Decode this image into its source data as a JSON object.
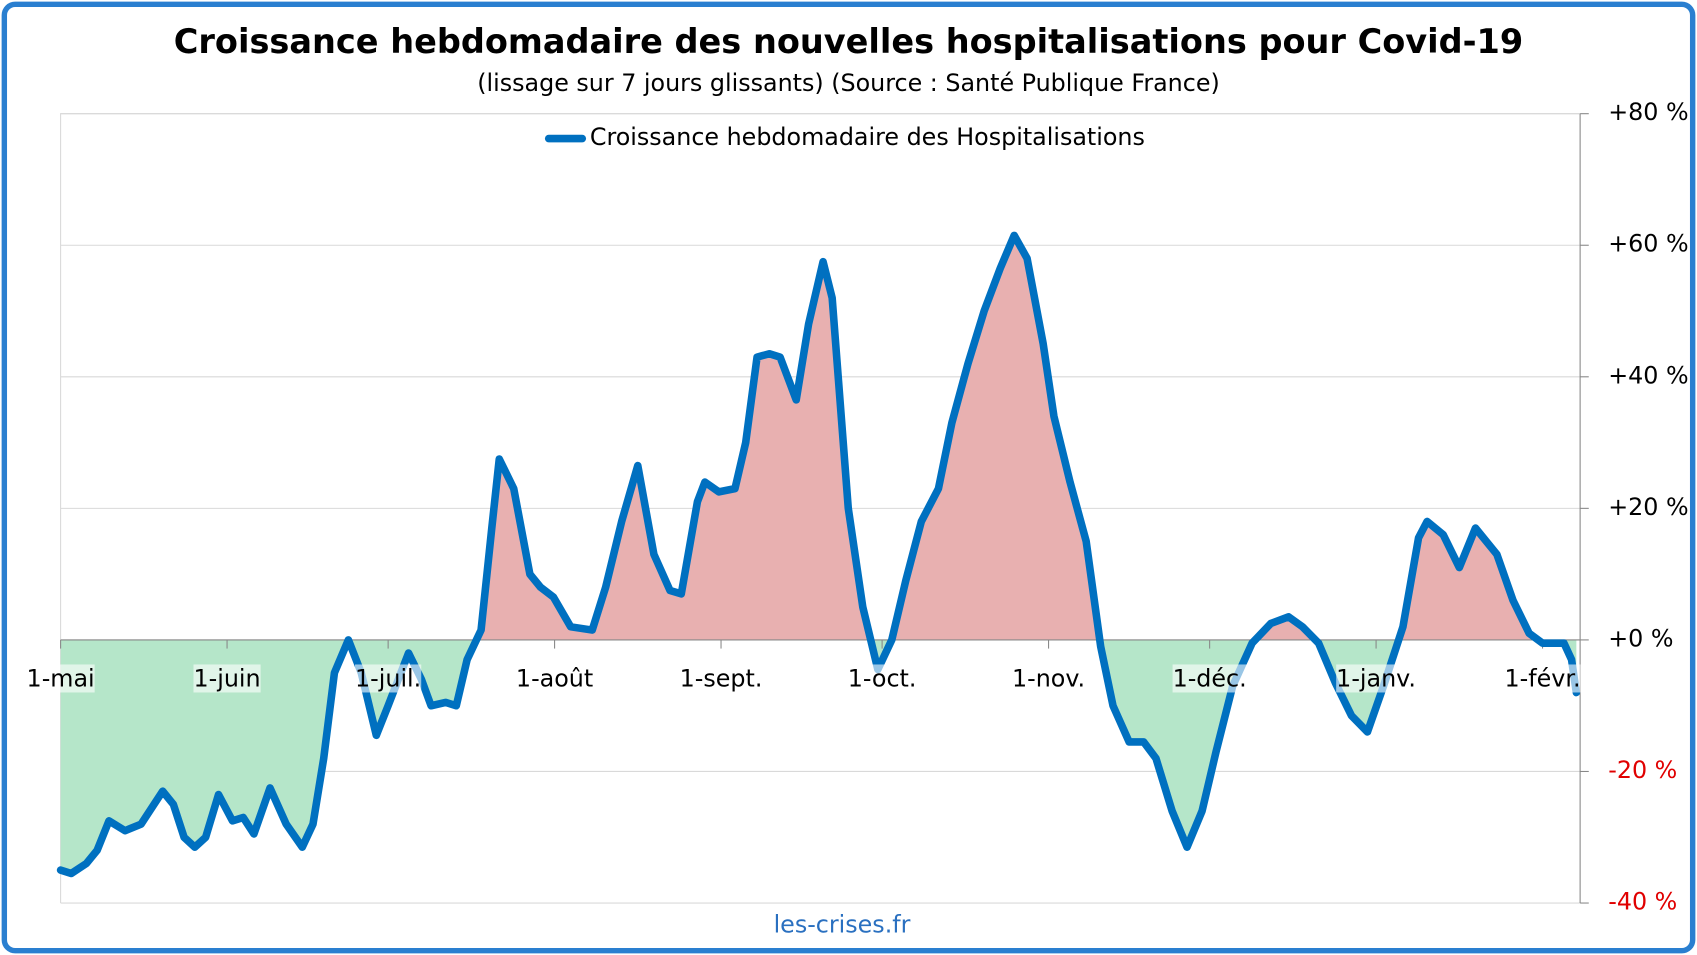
{
  "chart_data": {
    "type": "line",
    "title": "Croissance hebdomadaire des nouvelles hospitalisations pour Covid-19",
    "subtitle": "(lissage sur 7 jours glissants) (Source : Santé Publique France)",
    "source": "les-crises.fr",
    "x": [
      0,
      2,
      4.8,
      6.8,
      9,
      12,
      15,
      17,
      19,
      21,
      23,
      25,
      27,
      29.4,
      32,
      34,
      36,
      39,
      42,
      45,
      47,
      49,
      51,
      53.6,
      56,
      58.8,
      61,
      64.8,
      67.2,
      69,
      71.7,
      73.7,
      75.7,
      78.3,
      80.3,
      81.7,
      84.4,
      87.4,
      89.4,
      91.8,
      95,
      99,
      101.5,
      104.5,
      107.5,
      110.5,
      113.5,
      115.6,
      118.6,
      120,
      122.6,
      125.6,
      127.6,
      129.7,
      132,
      134,
      137,
      139.3,
      142,
      143.7,
      146.7,
      149.4,
      152.2,
      154.8,
      157.4,
      160.3,
      163.5,
      166,
      169,
      172,
      175,
      177.6,
      180,
      183,
      185,
      188,
      191,
      193.7,
      196,
      199,
      201.7,
      204,
      207,
      209.8,
      212.6,
      215.2,
      218.3,
      221.9,
      225.4,
      228.7,
      231.3,
      234.3,
      237.4,
      240.4,
      243.4,
      246.4,
      250,
      252.9,
      254.5,
      257.5,
      260.5,
      263.5,
      267.5,
      270.5,
      273.5,
      276,
      280,
      281.4,
      282.3
    ],
    "series": [
      {
        "name": "Croissance hebdomadaire des Hospitalisations",
        "color": "#0070c0",
        "values": [
          -35,
          -35.5,
          -34,
          -32,
          -27.5,
          -29,
          -28,
          -25.5,
          -23,
          -25,
          -30,
          -31.5,
          -30,
          -23.5,
          -27.5,
          -27,
          -29.5,
          -22.5,
          -28,
          -31.5,
          -28,
          -18,
          -5,
          0,
          -5,
          -14.5,
          -10,
          -2,
          -6,
          -10,
          -9.5,
          -10,
          -3,
          1.5,
          17,
          27.5,
          23,
          10,
          8,
          6.5,
          2,
          1.5,
          8,
          18,
          26.5,
          13,
          7.5,
          7,
          21,
          24,
          22.5,
          23,
          30,
          43,
          43.5,
          43,
          36.5,
          48,
          57.5,
          52,
          20,
          5,
          -4.5,
          0,
          9,
          18,
          23,
          33,
          42,
          50,
          56.5,
          61.5,
          58,
          45,
          34,
          24,
          15,
          -1,
          -10,
          -15.5,
          -15.5,
          -18,
          -26,
          -31.5,
          -26,
          -17,
          -7,
          -0.5,
          2.5,
          3.5,
          2,
          -0.5,
          -6.5,
          -11.5,
          -14,
          -7,
          2,
          15.5,
          18,
          16,
          11,
          17,
          13,
          6,
          1,
          -0.5,
          -0.5,
          -3,
          -8
        ]
      }
    ],
    "xlim": [
      0,
      283
    ],
    "xticks": [
      {
        "value": 0,
        "label": "1-mai"
      },
      {
        "value": 31,
        "label": "1-juin"
      },
      {
        "value": 61,
        "label": "1-juil."
      },
      {
        "value": 92,
        "label": "1-août"
      },
      {
        "value": 123,
        "label": "1-sept."
      },
      {
        "value": 153,
        "label": "1-oct."
      },
      {
        "value": 184,
        "label": "1-nov."
      },
      {
        "value": 214,
        "label": "1-déc."
      },
      {
        "value": 245,
        "label": "1-janv."
      },
      {
        "value": 276,
        "label": "1-févr."
      }
    ],
    "ylim": [
      -40,
      80
    ],
    "yticks": [
      {
        "value": -40,
        "label": "-40 %"
      },
      {
        "value": -20,
        "label": "-20 %"
      },
      {
        "value": 0,
        "label": "+0 %"
      },
      {
        "value": 20,
        "label": "+20 %"
      },
      {
        "value": 40,
        "label": "+40 %"
      },
      {
        "value": 60,
        "label": "+60 %"
      },
      {
        "value": 80,
        "label": "+80 %"
      }
    ],
    "grid": true,
    "legend": "top",
    "positive_fill": "#e8b0b0",
    "negative_fill": "#b5e6c9",
    "negative_tick_color": "#e00000"
  }
}
